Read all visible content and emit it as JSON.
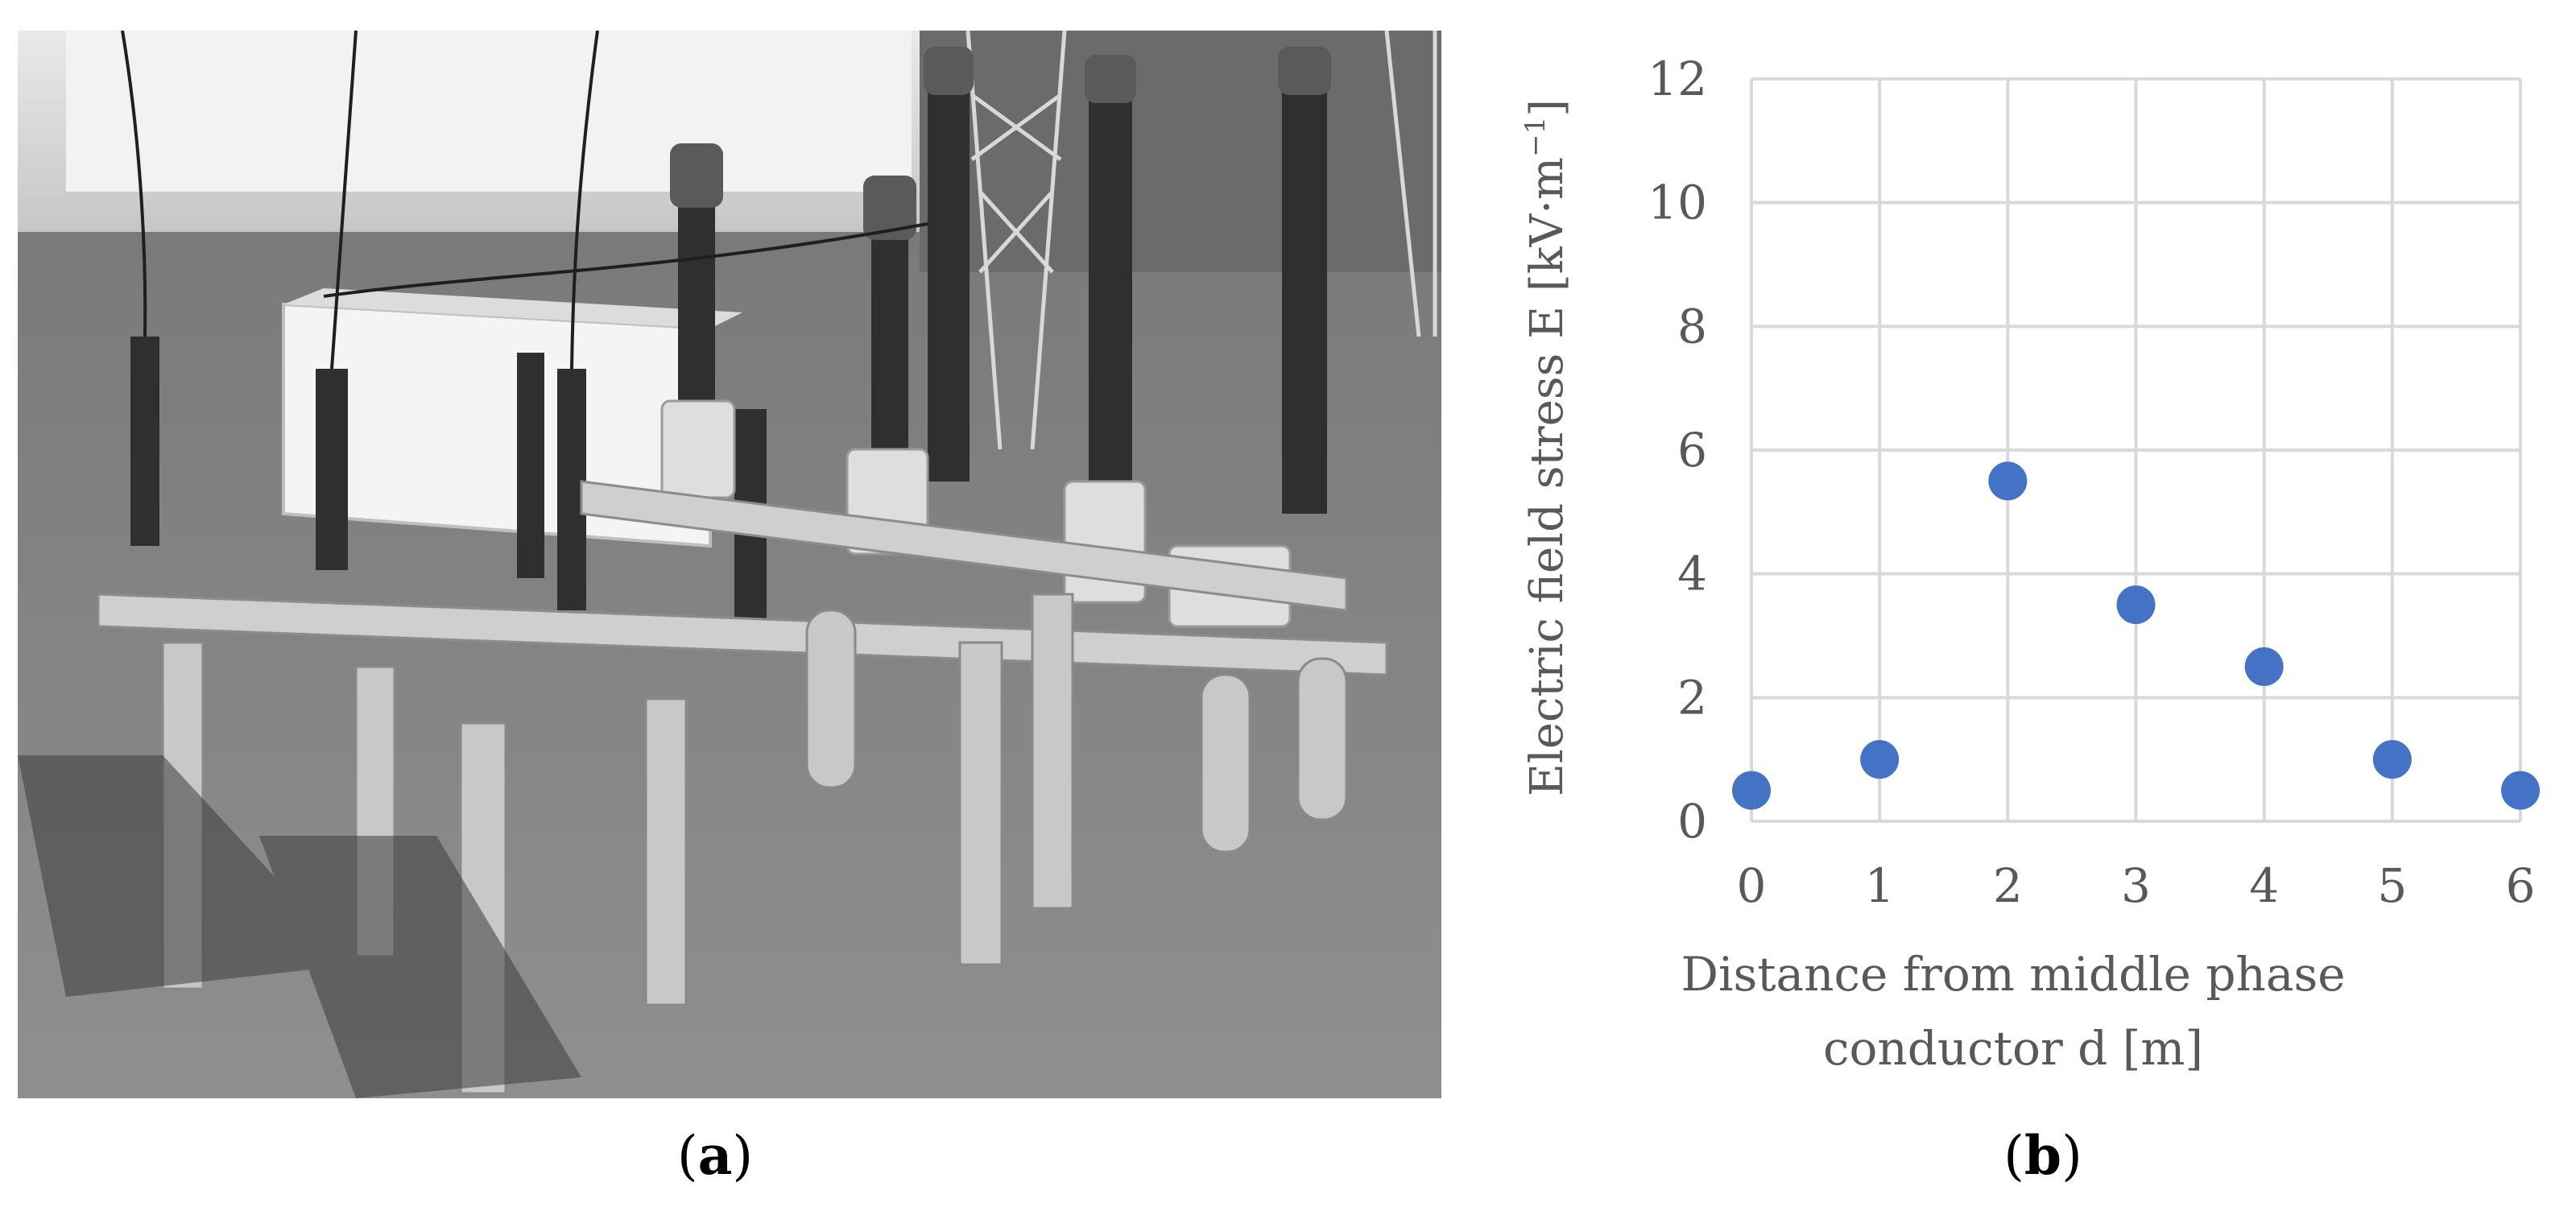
{
  "panels": {
    "a": {
      "label": "a"
    },
    "b": {
      "label": "b"
    }
  },
  "photo": {
    "icon": "substation-photo",
    "color": "#8e8e8e"
  },
  "chart_data": {
    "type": "scatter",
    "title": "",
    "xlabel_lines": [
      "Distance from middle phase",
      "conductor d [m]"
    ],
    "ylabel_text": "Electric field stress E [kV·m",
    "ylabel_sup": "−1",
    "ylabel_close": "]",
    "xlim": [
      0,
      6
    ],
    "ylim": [
      0,
      12
    ],
    "x_ticks": [
      0,
      1,
      2,
      3,
      4,
      5,
      6
    ],
    "y_ticks": [
      0,
      2,
      4,
      6,
      8,
      10,
      12
    ],
    "grid": true,
    "legend": "none",
    "marker_color": "#4472c4",
    "grid_color": "#d9d9d9",
    "series": [
      {
        "x": [
          0,
          1,
          2,
          3,
          4,
          5,
          6
        ],
        "y": [
          0.5,
          1.0,
          5.5,
          3.5,
          2.5,
          1.0,
          0.5
        ]
      }
    ]
  }
}
